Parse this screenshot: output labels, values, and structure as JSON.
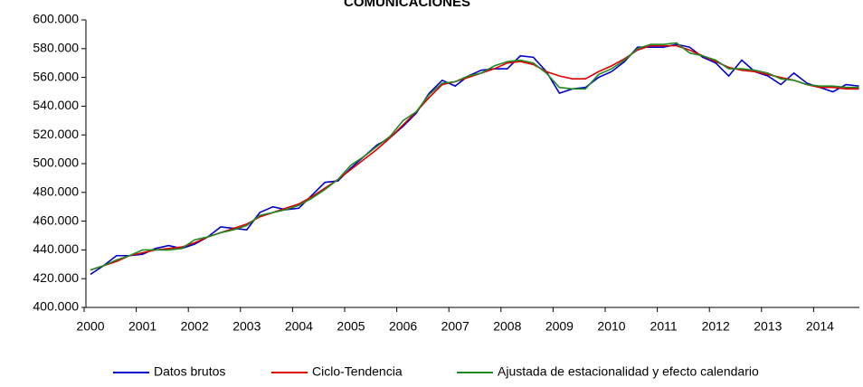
{
  "chart_data": {
    "type": "line",
    "title": "COMUNICACIONES",
    "categories": [
      "2000",
      null,
      null,
      null,
      "2001",
      null,
      null,
      null,
      "2002",
      null,
      null,
      null,
      "2003",
      null,
      null,
      null,
      "2004",
      null,
      null,
      null,
      "2005",
      null,
      null,
      null,
      "2006",
      null,
      null,
      null,
      "2007",
      null,
      null,
      null,
      "2008",
      null,
      null,
      null,
      "2009",
      null,
      null,
      null,
      "2010",
      null,
      null,
      null,
      "2011",
      null,
      null,
      null,
      "2012",
      null,
      null,
      null,
      "2013",
      null,
      null,
      null,
      "2014",
      null,
      null,
      null
    ],
    "series": [
      {
        "name": "Datos brutos",
        "color": "#0000cc",
        "values": [
          423000,
          429000,
          436000,
          436000,
          437000,
          441000,
          443000,
          441000,
          444000,
          449000,
          456000,
          455000,
          454000,
          466000,
          470000,
          468000,
          469000,
          478000,
          487000,
          488000,
          497000,
          505000,
          513000,
          518000,
          526000,
          535000,
          549000,
          558000,
          554000,
          561000,
          565000,
          566000,
          566000,
          575000,
          574000,
          564000,
          549000,
          552000,
          553000,
          560000,
          564000,
          571000,
          581000,
          581000,
          581000,
          583000,
          581000,
          574000,
          570000,
          561000,
          572000,
          564000,
          561000,
          555000,
          563000,
          556000,
          553000,
          550000,
          555000,
          554000
        ]
      },
      {
        "name": "Ciclo-Tendencia",
        "color": "#dd0000",
        "values": [
          426000,
          429000,
          432000,
          436000,
          438000,
          440000,
          441000,
          442000,
          445000,
          449000,
          452000,
          455000,
          458000,
          463000,
          466000,
          469000,
          472000,
          477000,
          483000,
          489000,
          496000,
          503000,
          510000,
          518000,
          527000,
          536000,
          546000,
          555000,
          557000,
          560000,
          563000,
          566000,
          570000,
          571000,
          569000,
          564000,
          561000,
          559000,
          559000,
          564000,
          568000,
          573000,
          579000,
          582000,
          582000,
          582000,
          579000,
          575000,
          571000,
          567000,
          565000,
          564000,
          562000,
          560000,
          558000,
          555000,
          553000,
          553000,
          552000,
          552000
        ]
      },
      {
        "name": "Ajustada de estacionalidad y efecto calendario",
        "color": "#228822",
        "values": [
          426000,
          429000,
          433000,
          436000,
          440000,
          440000,
          440000,
          441000,
          447000,
          449000,
          452000,
          454000,
          457000,
          464000,
          466000,
          468000,
          471000,
          476000,
          482000,
          489000,
          499000,
          505000,
          512000,
          519000,
          530000,
          536000,
          548000,
          556000,
          557000,
          561000,
          563000,
          568000,
          571000,
          572000,
          570000,
          563000,
          553000,
          552000,
          552000,
          562000,
          566000,
          572000,
          580000,
          583000,
          583000,
          584000,
          577000,
          575000,
          572000,
          566000,
          566000,
          565000,
          563000,
          559000,
          558000,
          555000,
          554000,
          554000,
          553000,
          553000
        ]
      }
    ],
    "ylim": [
      400000,
      600000
    ],
    "yticks": [
      {
        "value": 400000,
        "label": "400.000"
      },
      {
        "value": 420000,
        "label": "420.000"
      },
      {
        "value": 440000,
        "label": "440.000"
      },
      {
        "value": 460000,
        "label": "460.000"
      },
      {
        "value": 480000,
        "label": "480.000"
      },
      {
        "value": 500000,
        "label": "500.000"
      },
      {
        "value": 520000,
        "label": "520.000"
      },
      {
        "value": 540000,
        "label": "540.000"
      },
      {
        "value": 560000,
        "label": "560.000"
      },
      {
        "value": 580000,
        "label": "580.000"
      },
      {
        "value": 600000,
        "label": "600.000"
      }
    ],
    "legend": "bottom"
  }
}
